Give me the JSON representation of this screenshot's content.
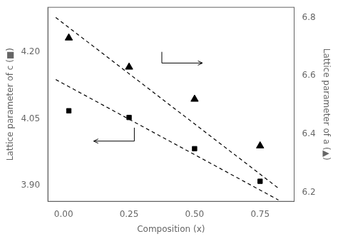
{
  "chart_data": {
    "type": "scatter",
    "xlabel": "Composition (x)",
    "ylabel": "Lattice parameter of c (■)",
    "y2label": "Lattice parameter of a (▲)",
    "xlim": [
      -0.06,
      0.88
    ],
    "ylim": [
      3.865,
      4.3
    ],
    "y2lim": [
      6.17,
      6.835
    ],
    "xticks": [
      {
        "value": 0.0,
        "label": "0.00"
      },
      {
        "value": 0.25,
        "label": "0.25"
      },
      {
        "value": 0.5,
        "label": "0.50"
      },
      {
        "value": 0.75,
        "label": "0.75"
      }
    ],
    "yticks": [
      {
        "value": 3.9,
        "label": "3.90"
      },
      {
        "value": 4.05,
        "label": "4.05"
      },
      {
        "value": 4.2,
        "label": "4.20"
      }
    ],
    "y2ticks": [
      6.2,
      6.4,
      6.6,
      6.8
    ],
    "grid": false,
    "series": [
      {
        "type": "scatter",
        "marker": "square",
        "color": "black",
        "axis": "y",
        "x": [
          0.02,
          0.25,
          0.5,
          0.75
        ],
        "values": [
          4.068,
          4.053,
          3.983,
          3.91
        ]
      },
      {
        "type": "scatter",
        "marker": "triangle",
        "color": "black",
        "axis": "y2",
        "x": [
          0.02,
          0.25,
          0.5,
          0.75
        ],
        "values": [
          6.73,
          6.63,
          6.52,
          6.36
        ]
      },
      {
        "type": "line",
        "line_style": "dashed",
        "color": "black",
        "axis": "y",
        "x": [
          -0.03,
          0.82
        ],
        "values": [
          4.138,
          3.868
        ]
      },
      {
        "type": "line",
        "line_style": "dashed",
        "color": "black",
        "axis": "y2",
        "x": [
          -0.03,
          0.82
        ],
        "values": [
          6.8,
          6.215
        ]
      }
    ],
    "arrows": [
      {
        "color": "black",
        "axis": "y",
        "points": [
          [
            0.375,
            4.2
          ],
          [
            0.375,
            4.175
          ],
          [
            0.53,
            4.175
          ]
        ]
      },
      {
        "color": "black",
        "axis": "y",
        "points": [
          [
            0.27,
            4.03
          ],
          [
            0.27,
            4.0
          ],
          [
            0.115,
            4.0
          ]
        ]
      }
    ]
  }
}
